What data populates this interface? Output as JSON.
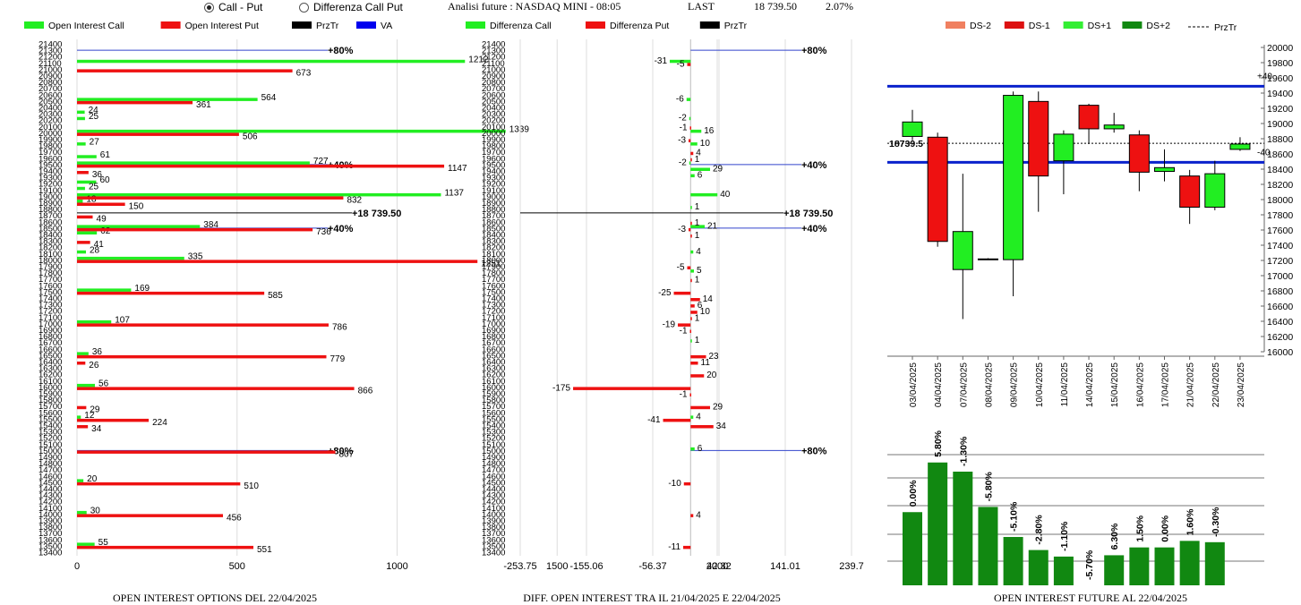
{
  "header": {
    "radio_call_put": "Call - Put",
    "radio_diff": "Differenza Call Put",
    "analisi": "Analisi future : NASDAQ MINI - 08:05",
    "last_label": "LAST",
    "last_value": "18 739.50",
    "last_change": "2.07%"
  },
  "panel_titles": {
    "left": "OPEN INTEREST OPTIONS DEL 22/04/2025",
    "middle": "DIFF. OPEN INTEREST TRA IL 21/04/2025 E 22/04/2025",
    "right": "OPEN INTEREST FUTURE AL 22/04/2025"
  },
  "chart_data": [
    {
      "type": "bar",
      "orientation": "horizontal",
      "legend": [
        {
          "name": "Open Interest Call",
          "color": "#22ee22"
        },
        {
          "name": "Open Interest Put",
          "color": "#ee1111"
        },
        {
          "name": "PrzTr",
          "color": "#000000"
        },
        {
          "name": "VA",
          "color": "#0000ee"
        }
      ],
      "strikes_axis": [
        "21400",
        "21300",
        "21200",
        "21100",
        "21000",
        "20900",
        "20800",
        "20700",
        "20600",
        "20500",
        "20400",
        "20300",
        "20200",
        "20100",
        "20000",
        "19900",
        "19800",
        "19700",
        "19600",
        "19500",
        "19400",
        "19300",
        "19200",
        "19100",
        "19000",
        "18900",
        "18800",
        "18700",
        "18600",
        "18500",
        "18400",
        "18300",
        "18200",
        "18100",
        "18000",
        "17900",
        "17800",
        "17700",
        "17600",
        "17500",
        "17400",
        "17300",
        "17200",
        "17100",
        "17000",
        "16900",
        "16800",
        "16700",
        "16600",
        "16500",
        "16400",
        "16300",
        "16200",
        "16100",
        "16000",
        "15900",
        "15800",
        "15700",
        "15600",
        "15500",
        "15400",
        "15300",
        "15200",
        "15100",
        "15000",
        "14900",
        "14800",
        "14700",
        "14600",
        "14500",
        "14400",
        "14300",
        "14200",
        "14100",
        "14000",
        "13900",
        "13800",
        "13700",
        "13600",
        "13500",
        "13400"
      ],
      "x_ticks": [
        "0",
        "500",
        "1000",
        "1500",
        "2000"
      ],
      "xlim": [
        0,
        2000
      ],
      "series": [
        {
          "name": "Open Interest Call",
          "values": [
            {
              "strike": 21100,
              "value": 1212
            },
            {
              "strike": 20500,
              "value": 564
            },
            {
              "strike": 20300,
              "value": 24
            },
            {
              "strike": 20200,
              "value": 25
            },
            {
              "strike": 20000,
              "value": 1339
            },
            {
              "strike": 19800,
              "value": 27
            },
            {
              "strike": 19600,
              "value": 61
            },
            {
              "strike": 19500,
              "value": 727
            },
            {
              "strike": 19200,
              "value": 60
            },
            {
              "strike": 19100,
              "value": 25
            },
            {
              "strike": 19000,
              "value": 1137
            },
            {
              "strike": 18900,
              "value": 18
            },
            {
              "strike": 18500,
              "value": 384
            },
            {
              "strike": 18400,
              "value": 62
            },
            {
              "strike": 18100,
              "value": 28
            },
            {
              "strike": 18000,
              "value": 335
            },
            {
              "strike": 17500,
              "value": 169
            },
            {
              "strike": 17000,
              "value": 107
            },
            {
              "strike": 16500,
              "value": 36
            },
            {
              "strike": 16000,
              "value": 56
            },
            {
              "strike": 15500,
              "value": 12
            },
            {
              "strike": 14500,
              "value": 20
            },
            {
              "strike": 14000,
              "value": 30
            },
            {
              "strike": 13500,
              "value": 55
            }
          ]
        },
        {
          "name": "Open Interest Put",
          "values": [
            {
              "strike": 21000,
              "value": 673
            },
            {
              "strike": 20500,
              "value": 361
            },
            {
              "strike": 20000,
              "value": 506
            },
            {
              "strike": 19500,
              "value": 1147
            },
            {
              "strike": 19400,
              "value": 36
            },
            {
              "strike": 19000,
              "value": 832
            },
            {
              "strike": 18900,
              "value": 150
            },
            {
              "strike": 18700,
              "value": 49
            },
            {
              "strike": 18500,
              "value": 736
            },
            {
              "strike": 18300,
              "value": 41
            },
            {
              "strike": 18000,
              "value": 1251
            },
            {
              "strike": 17500,
              "value": 585
            },
            {
              "strike": 17000,
              "value": 786
            },
            {
              "strike": 16500,
              "value": 779
            },
            {
              "strike": 16400,
              "value": 26
            },
            {
              "strike": 16000,
              "value": 866
            },
            {
              "strike": 15700,
              "value": 29
            },
            {
              "strike": 15500,
              "value": 224
            },
            {
              "strike": 15400,
              "value": 34
            },
            {
              "strike": 15000,
              "value": 807
            },
            {
              "strike": 14500,
              "value": 510
            },
            {
              "strike": 14000,
              "value": 456
            },
            {
              "strike": 13500,
              "value": 551
            }
          ]
        }
      ],
      "price_line": {
        "strike": 18739.5,
        "label": "18 739.50"
      },
      "va_lines": [
        {
          "strike": 21300,
          "label": "80%"
        },
        {
          "strike": 19500,
          "label": "40%"
        },
        {
          "strike": 18500,
          "label": "40%"
        },
        {
          "strike": 15000,
          "label": "80%"
        }
      ]
    },
    {
      "type": "bar",
      "orientation": "horizontal",
      "legend": [
        {
          "name": "Differenza Call",
          "color": "#22ee22"
        },
        {
          "name": "Differenza Put",
          "color": "#ee1111"
        },
        {
          "name": "PrzTr",
          "color": "#000000"
        }
      ],
      "x_ticks": [
        "-253.75",
        "-155.06",
        "-56.37",
        "42.32",
        "141.01",
        "239.7"
      ],
      "xlim": [
        -253.75,
        239.7
      ],
      "series": [
        {
          "name": "Differenza Call",
          "values": [
            {
              "strike": 21100,
              "value": -31
            },
            {
              "strike": 20500,
              "value": -6
            },
            {
              "strike": 20200,
              "value": -2
            },
            {
              "strike": 20000,
              "value": 16
            },
            {
              "strike": 19800,
              "value": 10
            },
            {
              "strike": 19500,
              "value": -2
            },
            {
              "strike": 19400,
              "value": 29
            },
            {
              "strike": 19300,
              "value": 6
            },
            {
              "strike": 19000,
              "value": 40
            },
            {
              "strike": 18800,
              "value": 1
            },
            {
              "strike": 18500,
              "value": 21
            },
            {
              "strike": 18100,
              "value": 4
            },
            {
              "strike": 17800,
              "value": 5
            },
            {
              "strike": 16700,
              "value": 1
            },
            {
              "strike": 15500,
              "value": 4
            },
            {
              "strike": 15000,
              "value": 6
            }
          ]
        },
        {
          "name": "Differenza Put",
          "values": [
            {
              "strike": 21100,
              "value": -5
            },
            {
              "strike": 20100,
              "value": -1
            },
            {
              "strike": 19900,
              "value": -3
            },
            {
              "strike": 19700,
              "value": 4
            },
            {
              "strike": 19600,
              "value": 1
            },
            {
              "strike": 18600,
              "value": 1
            },
            {
              "strike": 18500,
              "value": -3
            },
            {
              "strike": 18400,
              "value": 1
            },
            {
              "strike": 17900,
              "value": -5
            },
            {
              "strike": 17700,
              "value": 1
            },
            {
              "strike": 17500,
              "value": -25
            },
            {
              "strike": 17400,
              "value": 14
            },
            {
              "strike": 17300,
              "value": 6
            },
            {
              "strike": 17200,
              "value": 10
            },
            {
              "strike": 17100,
              "value": 1
            },
            {
              "strike": 17000,
              "value": -19
            },
            {
              "strike": 16900,
              "value": -1
            },
            {
              "strike": 16500,
              "value": 23
            },
            {
              "strike": 16400,
              "value": 11
            },
            {
              "strike": 16200,
              "value": 20
            },
            {
              "strike": 16000,
              "value": -175
            },
            {
              "strike": 15900,
              "value": -1
            },
            {
              "strike": 15700,
              "value": 29
            },
            {
              "strike": 15500,
              "value": -41
            },
            {
              "strike": 15400,
              "value": 34
            },
            {
              "strike": 14500,
              "value": -10
            },
            {
              "strike": 14000,
              "value": 4
            },
            {
              "strike": 13500,
              "value": -11
            }
          ]
        }
      ],
      "price_line": {
        "strike": 18739.5,
        "label": "18 739.50"
      },
      "va_lines": [
        {
          "strike": 21300,
          "label": "80%"
        },
        {
          "strike": 19500,
          "label": "40%"
        },
        {
          "strike": 18500,
          "label": "40%"
        },
        {
          "strike": 15000,
          "label": "80%"
        }
      ]
    },
    {
      "type": "candlestick",
      "legend": [
        {
          "name": "DS-2",
          "color": "#f08060"
        },
        {
          "name": "DS-1",
          "color": "#dd1111"
        },
        {
          "name": "DS+1",
          "color": "#33ee33"
        },
        {
          "name": "DS+2",
          "color": "#118811"
        },
        {
          "name": "PrzTr",
          "color": "#000000"
        }
      ],
      "ylim": [
        16000,
        20000
      ],
      "y_ticks": [
        "20000",
        "19800",
        "19600",
        "19400",
        "19200",
        "19000",
        "18800",
        "18600",
        "18400",
        "18200",
        "18000",
        "17800",
        "17600",
        "17400",
        "17200",
        "17000",
        "16800",
        "16600",
        "16400",
        "16200",
        "16000"
      ],
      "blue_levels": [
        19490,
        18490
      ],
      "price_label": "18739.5",
      "price_level": 18739.5,
      "right_markers": [
        "+40",
        "-40"
      ],
      "candles": [
        {
          "date": "03/04/2025",
          "open": 18830,
          "close": 19020,
          "high": 19180,
          "low": 18780
        },
        {
          "date": "04/04/2025",
          "open": 18820,
          "close": 17450,
          "high": 18880,
          "low": 17380
        },
        {
          "date": "07/04/2025",
          "open": 17080,
          "close": 17580,
          "high": 18340,
          "low": 16430
        },
        {
          "date": "08/04/2025",
          "open": 17220,
          "close": 17220,
          "high": 17230,
          "low": 17210
        },
        {
          "date": "09/04/2025",
          "open": 17210,
          "close": 19370,
          "high": 19420,
          "low": 16730
        },
        {
          "date": "10/04/2025",
          "open": 19290,
          "close": 18310,
          "high": 19420,
          "low": 17840
        },
        {
          "date": "11/04/2025",
          "open": 18510,
          "close": 18860,
          "high": 18910,
          "low": 18070
        },
        {
          "date": "14/04/2025",
          "open": 19240,
          "close": 18930,
          "high": 19260,
          "low": 18730
        },
        {
          "date": "15/04/2025",
          "open": 18930,
          "close": 18980,
          "high": 19140,
          "low": 18880
        },
        {
          "date": "16/04/2025",
          "open": 18850,
          "close": 18360,
          "high": 18910,
          "low": 18110
        },
        {
          "date": "17/04/2025",
          "open": 18370,
          "close": 18420,
          "high": 18660,
          "low": 18240
        },
        {
          "date": "21/04/2025",
          "open": 18310,
          "close": 17900,
          "high": 18390,
          "low": 17680
        },
        {
          "date": "22/04/2025",
          "open": 17900,
          "close": 18340,
          "high": 18510,
          "low": 17860
        },
        {
          "date": "23/04/2025",
          "open": 18660,
          "close": 18730,
          "high": 18820,
          "low": 18640
        }
      ]
    },
    {
      "type": "bar",
      "series": [
        {
          "values": [
            {
              "date": "03/04/2025",
              "level": 0.56,
              "label": "0.00%"
            },
            {
              "date": "04/04/2025",
              "level": 0.94,
              "label": "5.80%"
            },
            {
              "date": "07/04/2025",
              "level": 0.87,
              "label": "-1.30%"
            },
            {
              "date": "08/04/2025",
              "level": 0.6,
              "label": "-5.80%"
            },
            {
              "date": "09/04/2025",
              "level": 0.37,
              "label": "-5.10%"
            },
            {
              "date": "10/04/2025",
              "level": 0.27,
              "label": "-2.80%"
            },
            {
              "date": "11/04/2025",
              "level": 0.22,
              "label": "-1.10%"
            },
            {
              "date": "14/04/2025",
              "level": 0.0,
              "label": "-5.70%"
            },
            {
              "date": "15/04/2025",
              "level": 0.23,
              "label": "6.30%"
            },
            {
              "date": "16/04/2025",
              "level": 0.29,
              "label": "1.50%"
            },
            {
              "date": "17/04/2025",
              "level": 0.29,
              "label": "0.00%"
            },
            {
              "date": "21/04/2025",
              "level": 0.34,
              "label": "1.60%"
            },
            {
              "date": "22/04/2025",
              "level": 0.33,
              "label": "-0.30%"
            }
          ]
        }
      ]
    }
  ]
}
